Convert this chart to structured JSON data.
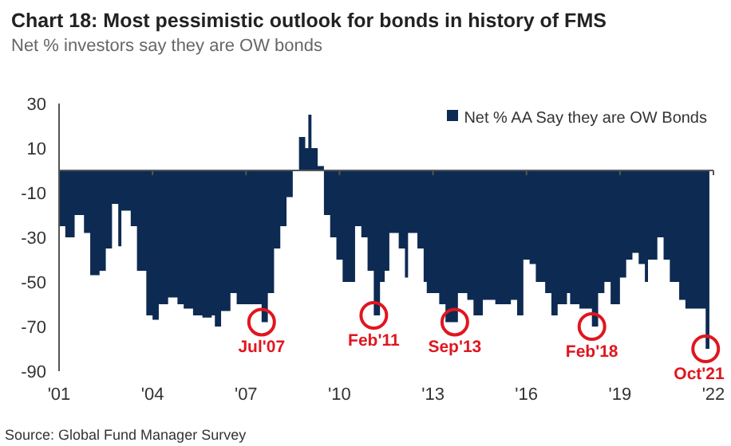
{
  "chart_data": {
    "type": "area",
    "title": "Chart 18: Most pessimistic outlook for bonds in history of FMS",
    "subtitle": "Net % investors say they are OW bonds",
    "series": [
      {
        "name": "Net % AA Say they are OW Bonds",
        "color": "#0d2a52",
        "x": [
          2001.0,
          2001.2,
          2001.5,
          2001.8,
          2002.0,
          2002.3,
          2002.5,
          2002.7,
          2002.9,
          2003.0,
          2003.3,
          2003.5,
          2003.8,
          2004.0,
          2004.2,
          2004.5,
          2004.8,
          2005.0,
          2005.3,
          2005.6,
          2005.9,
          2006.0,
          2006.2,
          2006.5,
          2006.7,
          2007.0,
          2007.5,
          2007.7,
          2007.9,
          2008.1,
          2008.3,
          2008.5,
          2008.7,
          2008.9,
          2009.0,
          2009.1,
          2009.3,
          2009.5,
          2009.7,
          2009.9,
          2010.1,
          2010.3,
          2010.5,
          2010.7,
          2010.9,
          2011.1,
          2011.3,
          2011.45,
          2011.6,
          2011.9,
          2012.1,
          2012.2,
          2012.5,
          2012.7,
          2012.8,
          2013.2,
          2013.4,
          2013.7,
          2013.8,
          2014.1,
          2014.3,
          2014.6,
          2015.0,
          2015.5,
          2015.7,
          2015.9,
          2016.1,
          2016.3,
          2016.6,
          2016.8,
          2017.0,
          2017.3,
          2017.4,
          2017.7,
          2018.1,
          2018.3,
          2018.5,
          2018.7,
          2019.0,
          2019.2,
          2019.4,
          2019.6,
          2019.8,
          2019.9,
          2020.2,
          2020.4,
          2020.6,
          2020.9,
          2021.1,
          2021.5,
          2021.75
        ],
        "values": [
          -25,
          -30,
          -20,
          -28,
          -47,
          -45,
          -35,
          -15,
          -34,
          -18,
          -25,
          -45,
          -65,
          -67,
          -60,
          -57,
          -60,
          -62,
          -65,
          -66,
          -65,
          -70,
          -63,
          -55,
          -60,
          -60,
          -68,
          -55,
          -35,
          -25,
          -12,
          0,
          15,
          10,
          25,
          10,
          2,
          -20,
          -30,
          -40,
          -50,
          -50,
          -25,
          -30,
          -45,
          -65,
          -50,
          -45,
          -28,
          -35,
          -48,
          -28,
          -35,
          -50,
          -55,
          -60,
          -68,
          -68,
          -55,
          -58,
          -65,
          -58,
          -60,
          -58,
          -65,
          -40,
          -42,
          -50,
          -55,
          -65,
          -60,
          -55,
          -60,
          -62,
          -70,
          -55,
          -50,
          -60,
          -48,
          -40,
          -37,
          -42,
          -50,
          -40,
          -30,
          -40,
          -50,
          -58,
          -62,
          -62,
          -80
        ]
      }
    ],
    "xlim": [
      2001,
      2022
    ],
    "xticks": [
      {
        "value": 2001,
        "label": "'01"
      },
      {
        "value": 2004,
        "label": "'04"
      },
      {
        "value": 2007,
        "label": "'07"
      },
      {
        "value": 2010,
        "label": "'10"
      },
      {
        "value": 2013,
        "label": "'13"
      },
      {
        "value": 2016,
        "label": "'16"
      },
      {
        "value": 2019,
        "label": "'19"
      },
      {
        "value": 2022,
        "label": "'22"
      }
    ],
    "ylim": [
      -90,
      30
    ],
    "yticks": [
      30,
      10,
      -10,
      -30,
      -50,
      -70,
      -90
    ],
    "legend": "top right",
    "annotations": [
      {
        "text": "Jul'07",
        "x": 2007.5,
        "y": -68
      },
      {
        "text": "Feb'11",
        "x": 2011.1,
        "y": -65
      },
      {
        "text": "Sep'13",
        "x": 2013.7,
        "y": -68
      },
      {
        "text": "Feb'18",
        "x": 2018.1,
        "y": -70
      },
      {
        "text": "Oct'21",
        "x": 2021.75,
        "y": -80
      },
      "Source: Global Fund Manager Survey"
    ]
  }
}
